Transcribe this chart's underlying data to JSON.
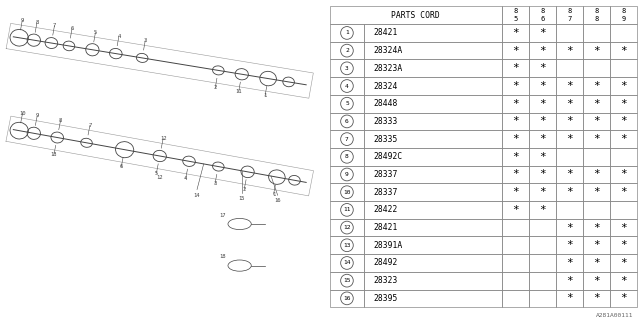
{
  "watermark": "A281A00111",
  "table_header": [
    "PARTS CORD",
    "85",
    "86",
    "87",
    "88",
    "89"
  ],
  "rows": [
    {
      "num": 1,
      "part": "28421",
      "cols": [
        true,
        true,
        false,
        false,
        false
      ]
    },
    {
      "num": 2,
      "part": "28324A",
      "cols": [
        true,
        true,
        true,
        true,
        true
      ]
    },
    {
      "num": 3,
      "part": "28323A",
      "cols": [
        true,
        true,
        false,
        false,
        false
      ]
    },
    {
      "num": 4,
      "part": "28324",
      "cols": [
        true,
        true,
        true,
        true,
        true
      ]
    },
    {
      "num": 5,
      "part": "28448",
      "cols": [
        true,
        true,
        true,
        true,
        true
      ]
    },
    {
      "num": 6,
      "part": "28333",
      "cols": [
        true,
        true,
        true,
        true,
        true
      ]
    },
    {
      "num": 7,
      "part": "28335",
      "cols": [
        true,
        true,
        true,
        true,
        true
      ]
    },
    {
      "num": 8,
      "part": "28492C",
      "cols": [
        true,
        true,
        false,
        false,
        false
      ]
    },
    {
      "num": 9,
      "part": "28337",
      "cols": [
        true,
        true,
        true,
        true,
        true
      ]
    },
    {
      "num": 10,
      "part": "28337",
      "cols": [
        true,
        true,
        true,
        true,
        true
      ]
    },
    {
      "num": 11,
      "part": "28422",
      "cols": [
        true,
        true,
        false,
        false,
        false
      ]
    },
    {
      "num": 12,
      "part": "28421",
      "cols": [
        false,
        false,
        true,
        true,
        true
      ]
    },
    {
      "num": 13,
      "part": "28391A",
      "cols": [
        false,
        false,
        true,
        true,
        true
      ]
    },
    {
      "num": 14,
      "part": "28492",
      "cols": [
        false,
        false,
        true,
        true,
        true
      ]
    },
    {
      "num": 15,
      "part": "28323",
      "cols": [
        false,
        false,
        true,
        true,
        true
      ]
    },
    {
      "num": 16,
      "part": "28395",
      "cols": [
        false,
        false,
        true,
        true,
        true
      ]
    }
  ],
  "bg_color": "#ffffff",
  "text_color": "#000000",
  "grid_color": "#888888",
  "diagram_color": "#444444"
}
